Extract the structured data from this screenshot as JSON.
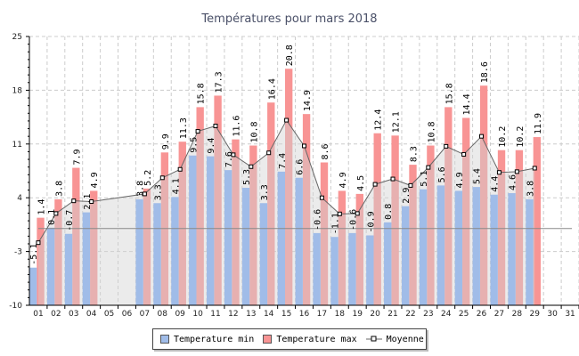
{
  "chart_data": {
    "type": "bar",
    "title": "Températures pour mars 2018",
    "categories": [
      "01",
      "02",
      "03",
      "04",
      "05",
      "06",
      "07",
      "08",
      "09",
      "10",
      "11",
      "12",
      "13",
      "14",
      "15",
      "16",
      "17",
      "18",
      "19",
      "20",
      "21",
      "22",
      "23",
      "24",
      "25",
      "26",
      "27",
      "28",
      "29",
      "30",
      "31"
    ],
    "yticks": [
      25,
      18,
      11,
      4,
      -3,
      -10
    ],
    "ylim": [
      -10,
      25
    ],
    "grid": true,
    "series": [
      {
        "name": "Temperature min",
        "color": "#a0bce8",
        "values": [
          -5.1,
          0.1,
          -0.7,
          2.1,
          null,
          null,
          3.8,
          3.3,
          4.1,
          9.5,
          9.4,
          7.6,
          5.3,
          3.3,
          7.4,
          6.6,
          -0.6,
          -1.1,
          -0.6,
          -0.9,
          0.8,
          2.9,
          5.1,
          5.6,
          4.9,
          5.4,
          4.4,
          4.6,
          3.8,
          null,
          null
        ]
      },
      {
        "name": "Temperature max",
        "color": "#f89494",
        "values": [
          1.4,
          3.8,
          7.9,
          4.9,
          null,
          null,
          5.2,
          9.9,
          11.3,
          15.8,
          17.3,
          11.6,
          10.8,
          16.4,
          20.8,
          14.9,
          8.6,
          4.9,
          4.5,
          12.4,
          12.1,
          8.3,
          10.8,
          15.8,
          14.4,
          18.6,
          10.2,
          10.2,
          11.9,
          null,
          null
        ]
      },
      {
        "name": "Moyenne",
        "color": "#666666",
        "type": "line",
        "values": [
          -1.85,
          1.95,
          3.6,
          3.5,
          null,
          null,
          4.5,
          6.6,
          7.7,
          12.65,
          13.35,
          9.6,
          8.05,
          9.85,
          14.1,
          10.75,
          4.0,
          1.9,
          1.95,
          5.75,
          6.45,
          5.6,
          7.95,
          10.7,
          9.65,
          12.0,
          7.3,
          7.4,
          7.85,
          null,
          null
        ]
      }
    ],
    "legend": "bottom"
  }
}
